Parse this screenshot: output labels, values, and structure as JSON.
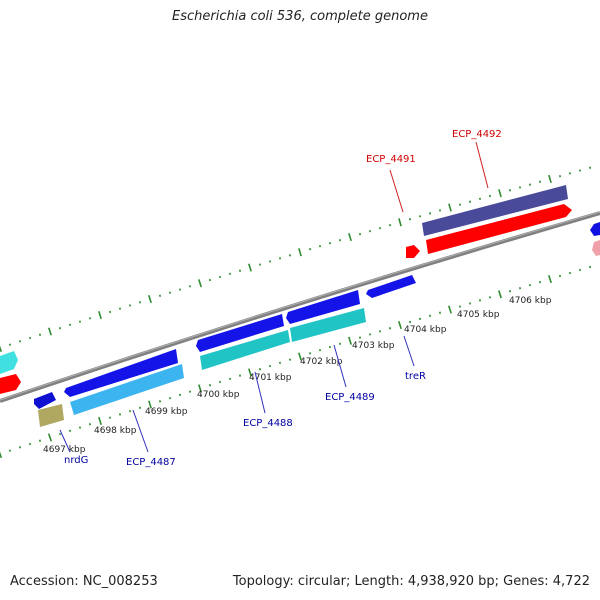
{
  "title": "Escherichia coli 536, complete genome",
  "footer": {
    "accession": "Accession: NC_008253",
    "summary": "Topology: circular; Length: 4,938,920 bp; Genes: 4,722"
  },
  "colors": {
    "backbone": "#808080",
    "tick": "#2e8b2e",
    "forward_cds": "#1010e0",
    "forward_cds_light": "#40b8f0",
    "reverse_cds_teal": "#20c0c0",
    "rna_red": "#ff0000",
    "dark_navy": "#4a4a9a",
    "olive": "#b0a860",
    "label_blue": "#0000a0",
    "label_red": "#d00000"
  },
  "tick_labels": [
    "4697 kbp",
    "4698 kbp",
    "4699 kbp",
    "4700 kbp",
    "4701 kbp",
    "4702 kbp",
    "4703 kbp",
    "4704 kbp",
    "4705 kbp",
    "4706 kbp"
  ],
  "gene_labels": [
    {
      "text": "nrdG",
      "color": "blue"
    },
    {
      "text": "ECP_4487",
      "color": "blue"
    },
    {
      "text": "ECP_4488",
      "color": "blue"
    },
    {
      "text": "ECP_4489",
      "color": "blue"
    },
    {
      "text": "treR",
      "color": "blue"
    },
    {
      "text": "ECP_4491",
      "color": "red"
    },
    {
      "text": "ECP_4492",
      "color": "red"
    }
  ]
}
